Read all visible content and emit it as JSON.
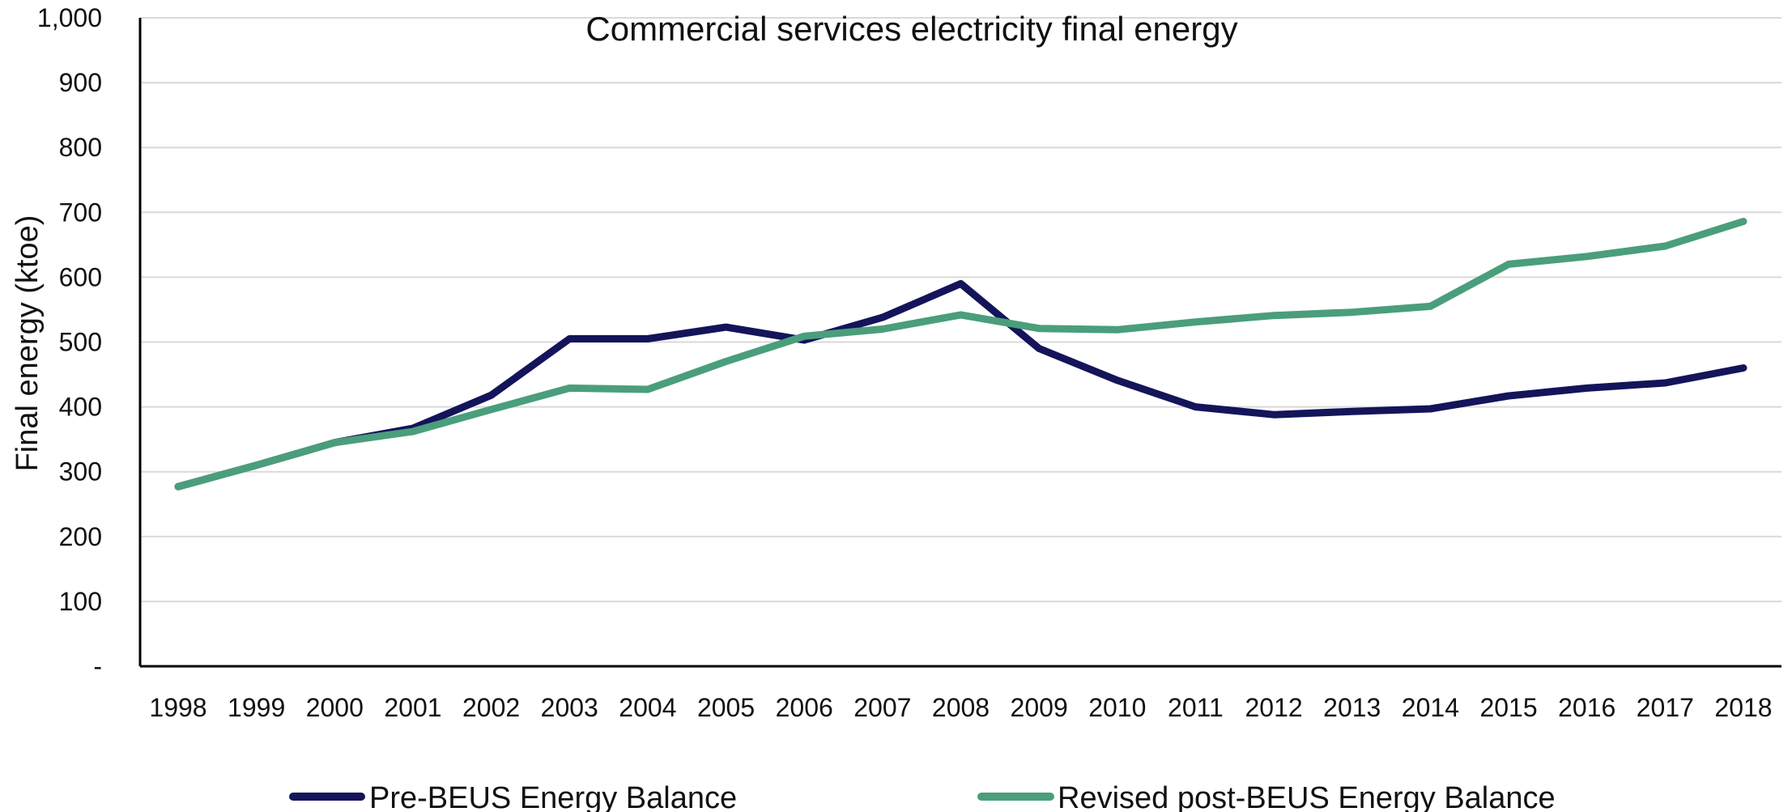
{
  "chart_data": {
    "type": "line",
    "title": "Commercial services electricity final energy",
    "xlabel": "",
    "ylabel": "Final energy (ktoe)",
    "ylim": [
      0,
      1000
    ],
    "yticks": [
      "-",
      "100",
      "200",
      "300",
      "400",
      "500",
      "600",
      "700",
      "800",
      "900",
      "1,000"
    ],
    "grid": true,
    "legend_position": "bottom",
    "categories": [
      "1998",
      "1999",
      "2000",
      "2001",
      "2002",
      "2003",
      "2004",
      "2005",
      "2006",
      "2007",
      "2008",
      "2009",
      "2010",
      "2011",
      "2012",
      "2013",
      "2014",
      "2015",
      "2016",
      "2017",
      "2018"
    ],
    "series": [
      {
        "name": "Pre-BEUS Energy Balance",
        "color": "#14145a",
        "values": [
          277,
          310,
          345,
          367,
          418,
          505,
          505,
          523,
          503,
          538,
          590,
          490,
          441,
          400,
          388,
          393,
          397,
          417,
          429,
          437,
          460
        ]
      },
      {
        "name": "Revised post-BEUS Energy Balance",
        "color": "#4a9e7c",
        "values": [
          277,
          310,
          345,
          362,
          396,
          429,
          427,
          470,
          509,
          520,
          542,
          521,
          519,
          531,
          541,
          546,
          555,
          620,
          632,
          648,
          686
        ]
      }
    ]
  }
}
